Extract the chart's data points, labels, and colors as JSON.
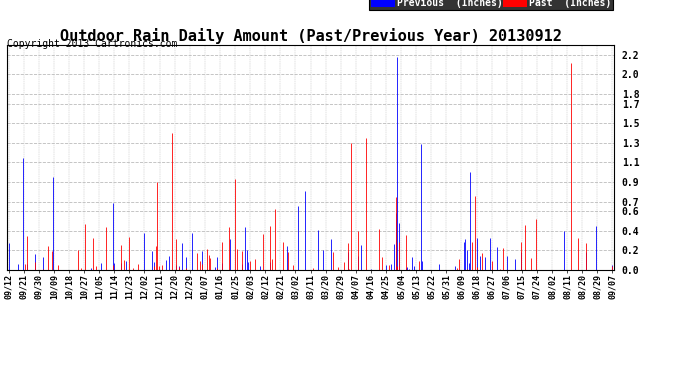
{
  "title": "Outdoor Rain Daily Amount (Past/Previous Year) 20130912",
  "copyright": "Copyright 2013 Cartronics.com",
  "legend_previous_label": "Previous  (Inches)",
  "legend_past_label": "Past  (Inches)",
  "previous_color": "#0000ff",
  "past_color": "#ff0000",
  "legend_previous_bg": "#0000ff",
  "legend_past_bg": "#ff0000",
  "background_color": "#ffffff",
  "plot_bg_color": "#ffffff",
  "grid_color": "#bbbbbb",
  "title_fontsize": 11,
  "copyright_fontsize": 7,
  "yticks": [
    0.0,
    0.2,
    0.4,
    0.6,
    0.7,
    0.9,
    1.1,
    1.3,
    1.5,
    1.7,
    1.8,
    2.0,
    2.2
  ],
  "ylim": [
    0.0,
    2.3
  ],
  "num_days": 366,
  "xtick_labels": [
    "09/12",
    "09/21",
    "09/30",
    "10/09",
    "10/18",
    "10/27",
    "11/05",
    "11/14",
    "11/23",
    "12/02",
    "12/11",
    "12/20",
    "12/29",
    "01/07",
    "01/16",
    "01/25",
    "02/03",
    "02/12",
    "02/21",
    "03/02",
    "03/11",
    "03/20",
    "03/29",
    "04/07",
    "04/16",
    "04/25",
    "05/04",
    "05/13",
    "05/22",
    "05/31",
    "06/09",
    "06/18",
    "06/27",
    "07/06",
    "07/15",
    "07/24",
    "08/02",
    "08/11",
    "08/20",
    "08/29",
    "09/07"
  ]
}
